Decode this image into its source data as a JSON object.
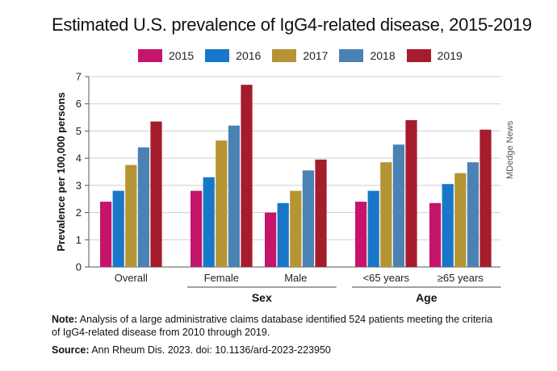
{
  "colors": {
    "2015": "#c5156b",
    "2016": "#1877c8",
    "2017": "#b59433",
    "2018": "#4b82b4",
    "2019": "#a51c2d"
  },
  "chart_data": {
    "type": "bar",
    "title": "Estimated U.S. prevalence of IgG4-related disease, 2015-2019",
    "ylabel": "Prevalence per 100,000 persons",
    "ylim": [
      0,
      7
    ],
    "yticks": [
      0,
      1,
      2,
      3,
      4,
      5,
      6,
      7
    ],
    "grid": true,
    "legend": "top",
    "categories": [
      "Overall",
      "Female",
      "Male",
      "<65 years",
      "≥65 years"
    ],
    "group_labels": [
      {
        "label": "Sex",
        "categories": [
          "Female",
          "Male"
        ]
      },
      {
        "label": "Age",
        "categories": [
          "<65 years",
          "≥65 years"
        ]
      }
    ],
    "series": [
      {
        "name": "2015",
        "values": [
          2.4,
          2.8,
          2.0,
          2.4,
          2.35
        ]
      },
      {
        "name": "2016",
        "values": [
          2.8,
          3.3,
          2.35,
          2.8,
          3.05
        ]
      },
      {
        "name": "2017",
        "values": [
          3.75,
          4.65,
          2.8,
          3.85,
          3.45
        ]
      },
      {
        "name": "2018",
        "values": [
          4.4,
          5.2,
          3.55,
          4.5,
          3.85
        ]
      },
      {
        "name": "2019",
        "values": [
          5.35,
          6.7,
          3.95,
          5.4,
          5.05
        ]
      }
    ]
  },
  "note": {
    "label": "Note:",
    "text": "Analysis of a large administrative claims database identified 524 patients meeting the criteria of IgG4-related disease from 2010 through 2019."
  },
  "source": {
    "label": "Source:",
    "text": "Ann Rheum Dis. 2023. doi: 10.1136/ard-2023-223950"
  },
  "credit": "MDedge News"
}
